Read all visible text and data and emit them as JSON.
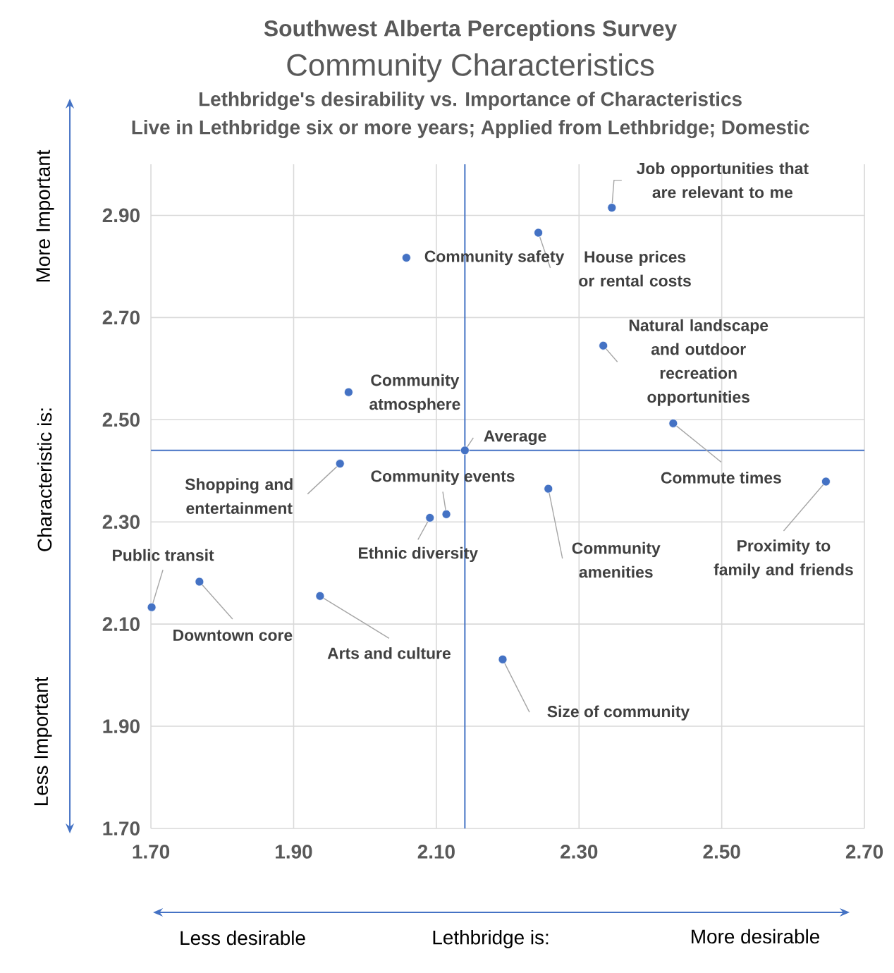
{
  "chart_data": {
    "type": "scatter",
    "title": "Southwest Alberta Perceptions Survey",
    "subtitle": "Community Characteristics",
    "xlabel": "Lethbridge is:",
    "ylabel": "Characteristic is:",
    "x": [
      2.346,
      2.243,
      2.058,
      2.334,
      1.977,
      2.432,
      2.14,
      1.965,
      2.646,
      2.257,
      2.114,
      2.091,
      1.768,
      1.701,
      1.937,
      2.193
    ],
    "values": [
      2.915,
      2.866,
      2.817,
      2.645,
      2.554,
      2.493,
      2.44,
      2.414,
      2.379,
      2.365,
      2.315,
      2.308,
      2.183,
      2.133,
      2.155,
      2.031
    ],
    "color": "#4472c4",
    "marker": "circle",
    "grid": true,
    "xlim": [
      1.7,
      2.7
    ],
    "ylim": [
      1.7,
      3.0
    ],
    "xticks": [
      {
        "value": 1.7,
        "label": "1.70"
      },
      {
        "value": 1.9,
        "label": "1.90"
      },
      {
        "value": 2.1,
        "label": "2.10"
      },
      {
        "value": 2.3,
        "label": "2.30"
      },
      {
        "value": 2.5,
        "label": "2.50"
      },
      {
        "value": 2.7,
        "label": "2.70"
      }
    ],
    "yticks": [
      {
        "value": 1.7,
        "label": "1.70"
      },
      {
        "value": 1.9,
        "label": "1.90"
      },
      {
        "value": 2.1,
        "label": "2.10"
      },
      {
        "value": 2.3,
        "label": "2.30"
      },
      {
        "value": 2.5,
        "label": "2.50"
      },
      {
        "value": 2.7,
        "label": "2.70"
      },
      {
        "value": 2.9,
        "label": "2.90"
      }
    ],
    "ref_lines": [
      {
        "axis": "x",
        "value": 2.14,
        "color": "#4472c4"
      },
      {
        "axis": "y",
        "value": 2.44,
        "color": "#4472c4"
      }
    ],
    "annotations": [
      "Lethbridge's desirability vs. Importance of Characteristics",
      "Live in Lethbridge six or more years; Applied from Lethbridge; Domestic",
      "More Important",
      "Less Important",
      "Less desirable",
      "More desirable",
      {
        "text": "Job opportunities that are relevant to me",
        "x": 2.346,
        "y": 2.915
      },
      {
        "text": "House prices or rental costs",
        "x": 2.243,
        "y": 2.866
      },
      {
        "text": "Community safety",
        "x": 2.058,
        "y": 2.817
      },
      {
        "text": "Natural landscape and outdoor recreation opportunities",
        "x": 2.334,
        "y": 2.645
      },
      {
        "text": "Community atmosphere",
        "x": 1.977,
        "y": 2.554
      },
      {
        "text": "Commute times",
        "x": 2.432,
        "y": 2.493
      },
      {
        "text": "Average",
        "x": 2.14,
        "y": 2.44
      },
      {
        "text": "Shopping and entertainment",
        "x": 1.965,
        "y": 2.414
      },
      {
        "text": "Proximity to family and friends",
        "x": 2.646,
        "y": 2.379
      },
      {
        "text": "Community amenities",
        "x": 2.257,
        "y": 2.365
      },
      {
        "text": "Community events",
        "x": 2.114,
        "y": 2.315
      },
      {
        "text": "Ethnic diversity",
        "x": 2.091,
        "y": 2.308
      },
      {
        "text": "Downtown core",
        "x": 1.768,
        "y": 2.183
      },
      {
        "text": "Public transit",
        "x": 1.701,
        "y": 2.133
      },
      {
        "text": "Arts and culture",
        "x": 1.937,
        "y": 2.155
      },
      {
        "text": "Size of community",
        "x": 2.193,
        "y": 2.031
      }
    ]
  }
}
